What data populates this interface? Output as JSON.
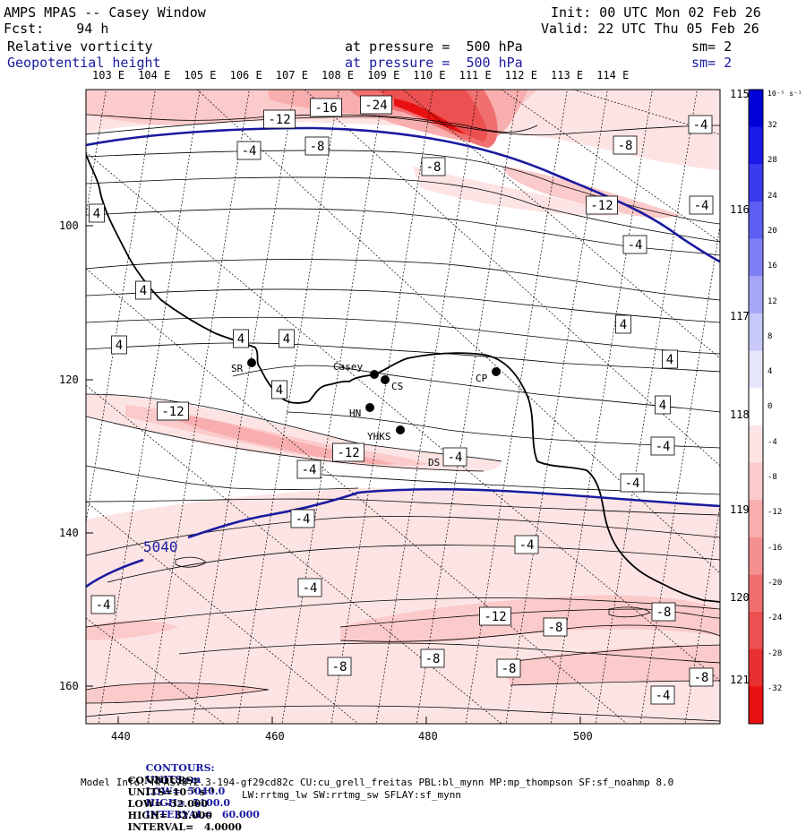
{
  "header": {
    "model": "AMPS MPAS -- Casey Window",
    "fcst": "Fcst:    94 h",
    "init": "Init: 00 UTC Mon 02 Feb 26",
    "valid": "Valid: 22 UTC Thu 05 Feb 26",
    "field1": {
      "name": "Relative vorticity",
      "level": "at pressure =  500 hPa",
      "sm": "sm= 2"
    },
    "field2": {
      "name": "Geopotential height",
      "level": "at pressure =  500 hPa",
      "sm": "sm= 2"
    }
  },
  "map": {
    "top_longitude_labels": [
      "103 E",
      "104 E",
      "105 E",
      "106 E",
      "107 E",
      "108 E",
      "109 E",
      "110 E",
      "111 E",
      "112 E",
      "113 E",
      "114 E"
    ],
    "right_longitude_labels": [
      "115 E",
      "116 E",
      "117 E",
      "118 E",
      "119 E",
      "120 E",
      "121 E"
    ],
    "x_axis_ticks": [
      "440",
      "460",
      "480",
      "500"
    ],
    "y_axis_ticks": [
      "100",
      "120",
      "140",
      "160"
    ],
    "stations": [
      {
        "id": "SR",
        "label": "SR"
      },
      {
        "id": "Casey",
        "label": "Casey"
      },
      {
        "id": "CS",
        "label": "CS"
      },
      {
        "id": "HN",
        "label": "HN"
      },
      {
        "id": "CP",
        "label": "CP"
      },
      {
        "id": "YHKS",
        "label": "YHKS"
      },
      {
        "id": "DS",
        "label": "DS"
      }
    ],
    "height_contour_label": "5040",
    "vorticity_contour_labels": [
      "-16",
      "-24",
      "-12",
      "-8",
      "-4",
      "-8",
      "-8",
      "-12",
      "-4",
      "-4",
      "-4",
      "4",
      "4",
      "4",
      "4",
      "4",
      "4",
      "4",
      "4",
      "4",
      "-12",
      "-12",
      "-4",
      "-4",
      "-4",
      "-4",
      "-4",
      "-4",
      "-4",
      "-8",
      "-12",
      "-8",
      "-8",
      "-8",
      "-8",
      "-8",
      "-4",
      "-4"
    ]
  },
  "colorbar": {
    "units": "10⁻⁵ s⁻¹",
    "ticks": [
      "32",
      "28",
      "24",
      "20",
      "16",
      "12",
      "8",
      "4",
      "0",
      "-4",
      "-8",
      "-12",
      "-16",
      "-20",
      "-24",
      "-28",
      "-32"
    ],
    "colors": [
      "#0000d8",
      "#1a1ae8",
      "#3a3af0",
      "#5e5ef4",
      "#8080f6",
      "#a6a6f8",
      "#c8c8fa",
      "#e6e6fc",
      "#ffffff",
      "#fde4e4",
      "#fbcaca",
      "#f8aeae",
      "#f49090",
      "#f07070",
      "#ec5050",
      "#e83030",
      "#e81010"
    ]
  },
  "footer": {
    "line1_label": "CONTOURS:",
    "line1_units": "UNITS=m",
    "line1_low": "LOW=  5040.0",
    "line1_high": "HIGH=  5100.0",
    "line1_interval": "INTERVAL=   60.000",
    "line2_label": "CONTOURS:",
    "line2_units": "UNITS=10⁻⁵ s⁻¹",
    "line2_low": "LOW= -32.000",
    "line2_high": "HIGH=  32.000",
    "line2_interval": "INTERVAL=   4.0000",
    "model_info": "Model Info: MPASv8.2.3-194-gf29cd82c CU:cu_grell_freitas PBL:bl_mynn MP:mp_thompson SF:sf_noahmp 8.0",
    "model_info2": "LW:rrtmg_lw SW:rrtmg_sw SFLAY:sf_mynn"
  }
}
